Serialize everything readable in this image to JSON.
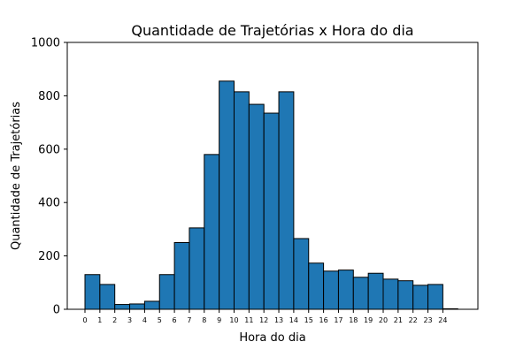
{
  "chart_data": {
    "type": "bar",
    "title": "Quantidade de Trajetórias x Hora do dia",
    "xlabel": "Hora do dia",
    "ylabel": "Quantidade de Trajetórias",
    "categories": [
      "0",
      "1",
      "2",
      "3",
      "4",
      "5",
      "6",
      "7",
      "8",
      "9",
      "10",
      "11",
      "12",
      "13",
      "14",
      "15",
      "16",
      "17",
      "18",
      "19",
      "20",
      "21",
      "22",
      "23",
      "24"
    ],
    "values": [
      130,
      93,
      18,
      20,
      30,
      130,
      250,
      305,
      580,
      855,
      815,
      768,
      735,
      815,
      265,
      173,
      143,
      147,
      120,
      135,
      113,
      107,
      90,
      93,
      2
    ],
    "ylim": [
      0,
      1000
    ],
    "yticks": [
      "0",
      "200",
      "400",
      "600",
      "800",
      "1000"
    ],
    "grid": false,
    "legend": "none",
    "bar_color": "#1f77b4",
    "edge_color": "#000000"
  }
}
